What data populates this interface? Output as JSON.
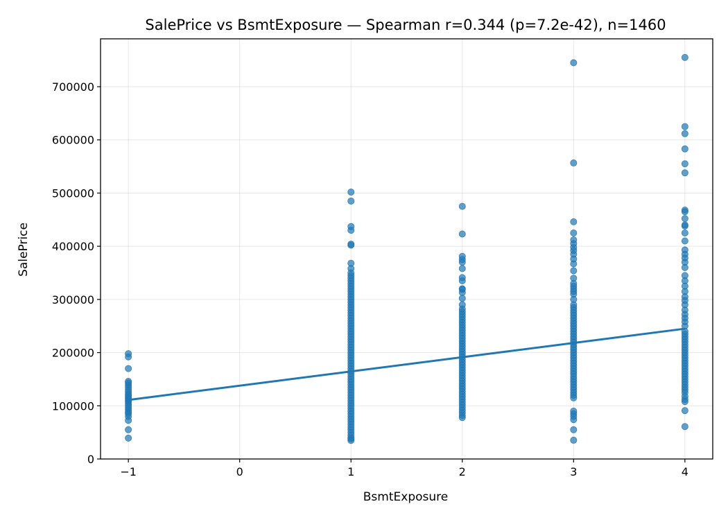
{
  "chart_data": {
    "type": "scatter",
    "title": "SalePrice vs BsmtExposure — Spearman r=0.344 (p=7.2e-42), n=1460",
    "xlabel": "BsmtExposure",
    "ylabel": "SalePrice",
    "xlim": [
      -1.25,
      4.25
    ],
    "ylim": [
      0,
      790000
    ],
    "x_ticks": [
      -1,
      0,
      1,
      2,
      3,
      4
    ],
    "x_tick_labels": [
      "−1",
      "0",
      "1",
      "2",
      "3",
      "4"
    ],
    "y_ticks": [
      0,
      100000,
      200000,
      300000,
      400000,
      500000,
      600000,
      700000
    ],
    "y_tick_labels": [
      "0",
      "100000",
      "200000",
      "300000",
      "400000",
      "500000",
      "600000",
      "700000"
    ],
    "grid": true,
    "marker_color": "#1f77b4",
    "series": [
      {
        "x": -1,
        "values": [
          39300,
          55000,
          72500,
          80000,
          85000,
          88000,
          92000,
          96000,
          100000,
          104000,
          108000,
          110000,
          113000,
          116000,
          119000,
          122000,
          126000,
          130000,
          135000,
          139000,
          143000,
          146000,
          170000,
          192000,
          198000
        ]
      },
      {
        "x": 1,
        "values": [
          34900,
          37900,
          40000,
          45000,
          50000,
          55000,
          60000,
          65000,
          70000,
          75000,
          80000,
          85000,
          90000,
          95000,
          100000,
          105000,
          110000,
          115000,
          120000,
          125000,
          130000,
          135000,
          140000,
          145000,
          150000,
          155000,
          160000,
          165000,
          170000,
          175000,
          180000,
          185000,
          190000,
          195000,
          200000,
          205000,
          210000,
          215000,
          220000,
          225000,
          230000,
          235000,
          240000,
          245000,
          250000,
          255000,
          260000,
          265000,
          270000,
          275000,
          280000,
          285000,
          290000,
          295000,
          300000,
          305000,
          310000,
          315000,
          320000,
          325000,
          330000,
          335000,
          340000,
          345000,
          350000,
          358000,
          368000,
          402000,
          404000,
          430000,
          437000,
          485000,
          501837
        ]
      },
      {
        "x": 2,
        "values": [
          78000,
          82000,
          87000,
          92000,
          97000,
          102000,
          107000,
          112000,
          117000,
          122000,
          127000,
          132000,
          137000,
          142000,
          147000,
          152000,
          157000,
          162000,
          167000,
          172000,
          177000,
          182000,
          187000,
          192000,
          197000,
          202000,
          207000,
          212000,
          217000,
          222000,
          227000,
          232000,
          237000,
          242000,
          247000,
          252000,
          257000,
          262000,
          267000,
          272000,
          277000,
          282000,
          290000,
          302000,
          313000,
          319000,
          320000,
          335000,
          341000,
          358000,
          370000,
          375000,
          381000,
          423000,
          475000
        ]
      },
      {
        "x": 3,
        "values": [
          35311,
          55000,
          74000,
          80000,
          85000,
          90000,
          115000,
          120000,
          125000,
          130000,
          135000,
          140000,
          145000,
          150000,
          155000,
          160000,
          165000,
          170000,
          175000,
          180000,
          185000,
          190000,
          195000,
          200000,
          205000,
          210000,
          215000,
          220000,
          225000,
          230000,
          235000,
          240000,
          245000,
          250000,
          255000,
          260000,
          265000,
          270000,
          275000,
          280000,
          285000,
          290000,
          300000,
          310000,
          315000,
          320000,
          325000,
          330000,
          340000,
          354000,
          367000,
          376000,
          385000,
          392000,
          398000,
          405000,
          412000,
          425000,
          446000,
          556581,
          745000
        ]
      },
      {
        "x": 4,
        "values": [
          61000,
          91000,
          108000,
          112000,
          118000,
          125000,
          130000,
          135000,
          140000,
          145000,
          150000,
          155000,
          160000,
          165000,
          170000,
          175000,
          180000,
          185000,
          190000,
          195000,
          200000,
          205000,
          210000,
          215000,
          220000,
          225000,
          230000,
          235000,
          240000,
          250000,
          258000,
          265000,
          272000,
          280000,
          290000,
          298000,
          305000,
          315000,
          325000,
          335000,
          345000,
          360000,
          370000,
          378000,
          385000,
          393000,
          410000,
          425000,
          438000,
          440000,
          452000,
          465000,
          468000,
          538000,
          555000,
          583000,
          611657,
          625000,
          755000
        ]
      }
    ],
    "trend_line": {
      "x": [
        -1,
        4
      ],
      "y": [
        111000,
        245000
      ],
      "color": "#1f77b4"
    }
  }
}
